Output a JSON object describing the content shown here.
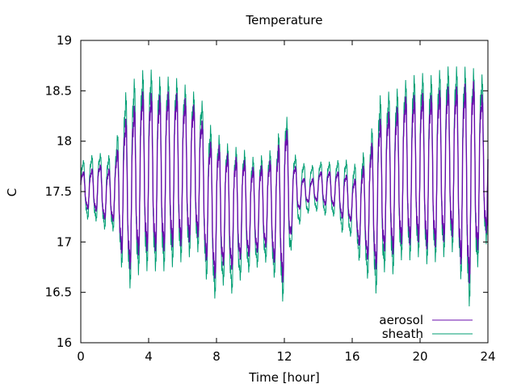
{
  "chart_data": {
    "type": "line",
    "title": "Temperature",
    "xlabel": "Time [hour]",
    "ylabel": "C",
    "xlim": [
      0,
      24
    ],
    "ylim": [
      16,
      19
    ],
    "xticks": [
      "0",
      "4",
      "8",
      "12",
      "16",
      "20",
      "24"
    ],
    "yticks": [
      "16",
      "16.5",
      "17",
      "17.5",
      "18",
      "18.5",
      "19"
    ],
    "grid": false,
    "legend_position": "bottom-right",
    "series": [
      {
        "name": "aerosol",
        "color": "#6a0dad",
        "x": [
          0.0,
          0.5,
          1.0,
          1.5,
          2.0,
          2.5,
          3.0,
          3.5,
          4.0,
          4.5,
          5.0,
          5.5,
          6.0,
          6.5,
          7.0,
          7.5,
          8.0,
          8.5,
          9.0,
          9.5,
          10.0,
          10.5,
          11.0,
          11.5,
          12.0,
          12.5,
          13.0,
          13.5,
          14.0,
          14.5,
          15.0,
          15.5,
          16.0,
          16.5,
          17.0,
          17.5,
          18.0,
          18.5,
          19.0,
          19.5,
          20.0,
          20.5,
          21.0,
          21.5,
          22.0,
          22.5,
          23.0,
          23.5,
          24.0
        ],
        "y_max": [
          17.7,
          17.7,
          17.8,
          17.7,
          17.8,
          18.2,
          18.3,
          18.5,
          18.5,
          18.45,
          18.5,
          18.5,
          18.45,
          18.4,
          18.3,
          18.0,
          18.0,
          17.9,
          17.85,
          17.85,
          17.75,
          17.75,
          17.8,
          17.85,
          18.25,
          17.8,
          17.65,
          17.6,
          17.7,
          17.7,
          17.7,
          17.7,
          17.6,
          17.7,
          17.9,
          18.2,
          18.3,
          18.3,
          18.45,
          18.45,
          18.5,
          18.45,
          18.5,
          18.55,
          18.55,
          18.55,
          18.65,
          18.5,
          18.4
        ],
        "y_min": [
          17.4,
          17.3,
          17.3,
          17.2,
          17.2,
          16.8,
          16.7,
          16.9,
          16.9,
          16.9,
          16.9,
          16.95,
          16.95,
          17.0,
          17.05,
          16.75,
          16.6,
          16.8,
          16.7,
          16.85,
          16.85,
          16.9,
          16.95,
          16.75,
          16.55,
          17.2,
          17.35,
          17.4,
          17.4,
          17.35,
          17.35,
          17.2,
          17.2,
          16.9,
          16.8,
          16.7,
          16.95,
          16.85,
          17.0,
          16.95,
          17.0,
          16.9,
          16.95,
          17.0,
          17.05,
          16.7,
          16.55,
          17.0,
          17.1
        ]
      },
      {
        "name": "sheath",
        "color": "#009e73",
        "x": [
          0.0,
          0.5,
          1.0,
          1.5,
          2.0,
          2.5,
          3.0,
          3.5,
          4.0,
          4.5,
          5.0,
          5.5,
          6.0,
          6.5,
          7.0,
          7.5,
          8.0,
          8.5,
          9.0,
          9.5,
          10.0,
          10.5,
          11.0,
          11.5,
          12.0,
          12.5,
          13.0,
          13.5,
          14.0,
          14.5,
          15.0,
          15.5,
          16.0,
          16.5,
          17.0,
          17.5,
          18.0,
          18.5,
          19.0,
          19.5,
          20.0,
          20.5,
          21.0,
          21.5,
          22.0,
          22.5,
          23.0,
          23.5,
          24.0
        ],
        "y_max": [
          17.8,
          17.85,
          17.9,
          17.85,
          17.9,
          18.45,
          18.6,
          18.7,
          18.75,
          18.65,
          18.65,
          18.65,
          18.6,
          18.5,
          18.5,
          18.2,
          18.1,
          18.0,
          17.95,
          17.95,
          17.85,
          17.85,
          17.9,
          17.95,
          18.4,
          17.9,
          17.8,
          17.75,
          17.8,
          17.8,
          17.8,
          17.85,
          17.75,
          17.85,
          18.0,
          18.45,
          18.5,
          18.5,
          18.6,
          18.65,
          18.7,
          18.65,
          18.7,
          18.75,
          18.75,
          18.75,
          18.75,
          18.7,
          18.6
        ],
        "y_min": [
          17.3,
          17.2,
          17.2,
          17.1,
          17.1,
          16.65,
          16.5,
          16.7,
          16.7,
          16.7,
          16.7,
          16.75,
          16.8,
          16.85,
          16.9,
          16.55,
          16.4,
          16.6,
          16.45,
          16.65,
          16.7,
          16.75,
          16.8,
          16.6,
          16.35,
          17.05,
          17.2,
          17.3,
          17.3,
          17.25,
          17.25,
          17.05,
          17.05,
          16.75,
          16.6,
          16.45,
          16.75,
          16.65,
          16.85,
          16.8,
          16.85,
          16.75,
          16.8,
          16.85,
          16.9,
          16.55,
          16.3,
          16.85,
          17.0
        ]
      }
    ]
  }
}
